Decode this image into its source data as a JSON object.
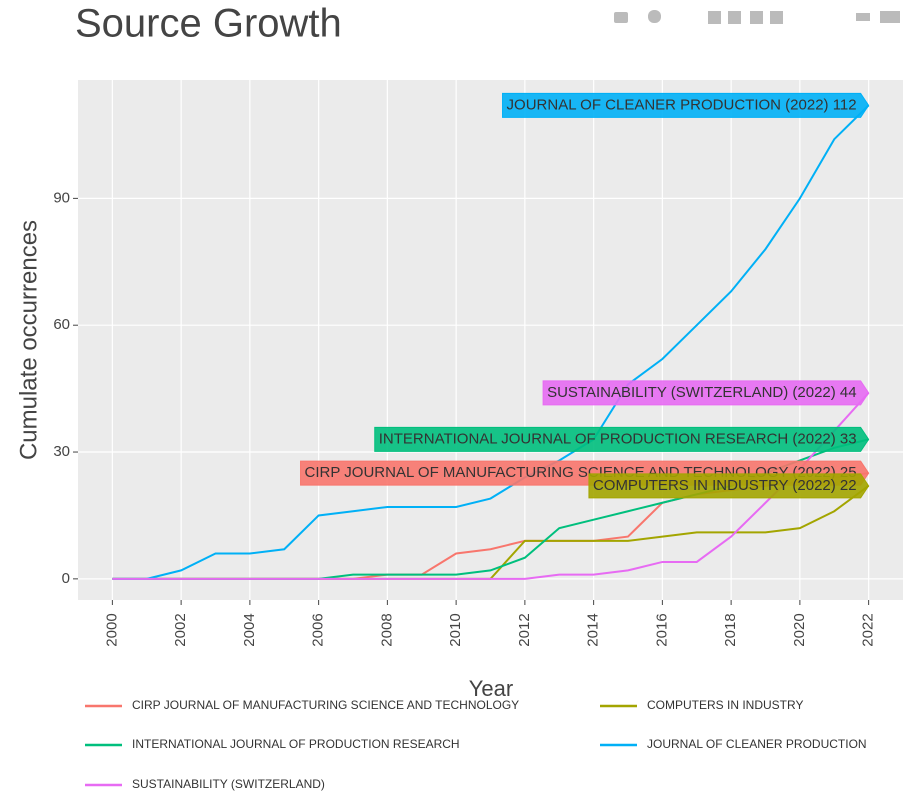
{
  "chart_data": {
    "type": "line",
    "title": "Source Growth",
    "x_label": "Year",
    "y_label": "Cumulate occurrences",
    "x": [
      2000,
      2001,
      2002,
      2003,
      2004,
      2005,
      2006,
      2007,
      2008,
      2009,
      2010,
      2011,
      2012,
      2013,
      2014,
      2015,
      2016,
      2017,
      2018,
      2019,
      2020,
      2021,
      2022
    ],
    "xlim": [
      1999,
      2023
    ],
    "xticks": [
      2000,
      2002,
      2004,
      2006,
      2008,
      2010,
      2012,
      2014,
      2016,
      2018,
      2020,
      2022
    ],
    "ylim": [
      -5,
      118
    ],
    "yticks": [
      0,
      30,
      60,
      90
    ],
    "grid": true,
    "series": [
      {
        "name": "CIRP JOURNAL OF MANUFACTURING SCIENCE AND TECHNOLOGY",
        "color": "#f8766d",
        "label": "CIRP JOURNAL OF MANUFACTURING SCIENCE AND TECHNOLOGY (2022) 25",
        "values": [
          0,
          0,
          0,
          0,
          0,
          0,
          0,
          0,
          1,
          1,
          6,
          7,
          9,
          9,
          9,
          10,
          18,
          20,
          21,
          22,
          23,
          24,
          25
        ]
      },
      {
        "name": "COMPUTERS IN INDUSTRY",
        "color": "#a3a500",
        "label": "COMPUTERS IN INDUSTRY (2022) 22",
        "values": [
          0,
          0,
          0,
          0,
          0,
          0,
          0,
          0,
          0,
          0,
          0,
          0,
          9,
          9,
          9,
          9,
          10,
          11,
          11,
          11,
          12,
          16,
          22
        ]
      },
      {
        "name": "INTERNATIONAL JOURNAL OF PRODUCTION RESEARCH",
        "color": "#00bf7d",
        "label": "INTERNATIONAL JOURNAL OF PRODUCTION RESEARCH (2022) 33",
        "values": [
          0,
          0,
          0,
          0,
          0,
          0,
          0,
          1,
          1,
          1,
          1,
          2,
          5,
          12,
          14,
          16,
          18,
          20,
          22,
          25,
          28,
          31,
          33
        ]
      },
      {
        "name": "JOURNAL OF CLEANER PRODUCTION",
        "color": "#00b0f6",
        "label": "JOURNAL OF CLEANER PRODUCTION (2022) 112",
        "values": [
          0,
          0,
          2,
          6,
          6,
          7,
          15,
          16,
          17,
          17,
          17,
          19,
          24,
          28,
          33,
          46,
          52,
          60,
          68,
          78,
          90,
          104,
          112
        ]
      },
      {
        "name": "SUSTAINABILITY (SWITZERLAND)",
        "color": "#e76bf3",
        "label": "SUSTAINABILITY (SWITZERLAND) (2022) 44",
        "values": [
          0,
          0,
          0,
          0,
          0,
          0,
          0,
          0,
          0,
          0,
          0,
          0,
          0,
          1,
          1,
          2,
          4,
          4,
          10,
          18,
          26,
          35,
          44
        ]
      }
    ]
  }
}
